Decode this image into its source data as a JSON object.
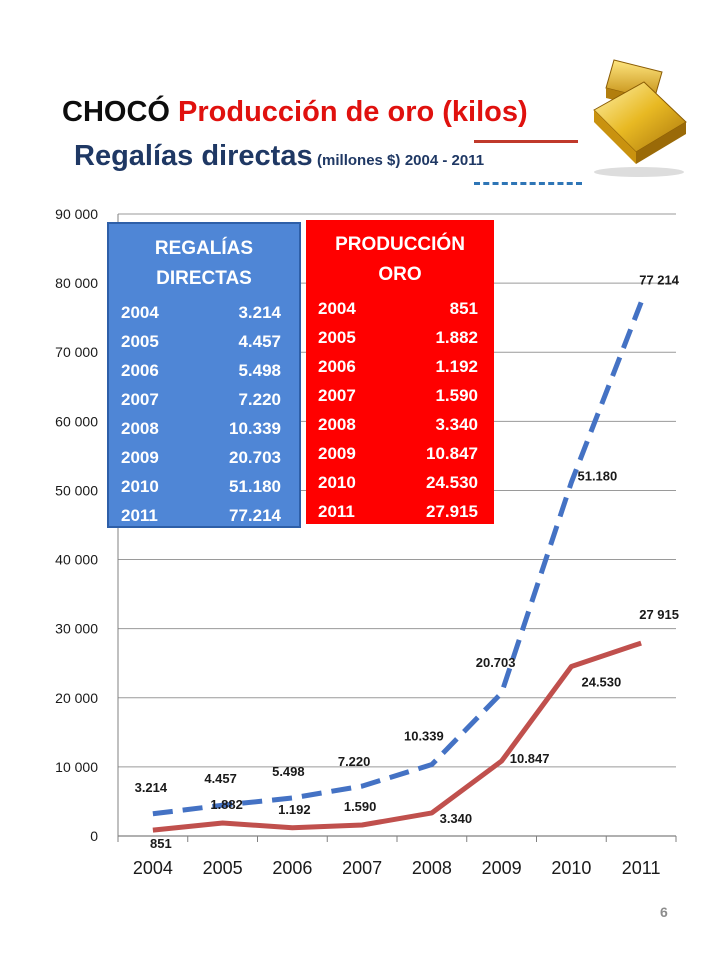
{
  "title": {
    "line1_prefix": "CHOCÓ",
    "line1_highlight": "Producción de oro (kilos)",
    "line2_main": "Regalías directas",
    "line2_small": "(millones $)",
    "line2_years": "2004 - 2011"
  },
  "colors": {
    "regalias": "#4472c4",
    "produccion": "#c0504d",
    "box_blue": "#4f86d6",
    "box_red": "#ff0000",
    "gold": "#e8b923"
  },
  "page_number": "6",
  "boxes": {
    "regalias": {
      "title_line1": "REGALÍAS",
      "title_line2": "DIRECTAS",
      "rows": [
        {
          "year": "2004",
          "value": "3.214"
        },
        {
          "year": "2005",
          "value": "4.457"
        },
        {
          "year": "2006",
          "value": "5.498"
        },
        {
          "year": "2007",
          "value": "7.220"
        },
        {
          "year": "2008",
          "value": "10.339"
        },
        {
          "year": "2009",
          "value": "20.703"
        },
        {
          "year": "2010",
          "value": "51.180"
        },
        {
          "year": "2011",
          "value": "77.214"
        }
      ]
    },
    "produccion": {
      "title_line1": "PRODUCCIÓN",
      "title_line2": "ORO",
      "rows": [
        {
          "year": "2004",
          "value": "851"
        },
        {
          "year": "2005",
          "value": "1.882"
        },
        {
          "year": "2006",
          "value": "1.192"
        },
        {
          "year": "2007",
          "value": "1.590"
        },
        {
          "year": "2008",
          "value": "3.340"
        },
        {
          "year": "2009",
          "value": "10.847"
        },
        {
          "year": "2010",
          "value": "24.530"
        },
        {
          "year": "2011",
          "value": "27.915"
        }
      ]
    }
  },
  "chart_data": {
    "type": "line",
    "title": "CHOCÓ Producción de oro (kilos) Regalías directas (millones $) 2004 - 2011",
    "x": [
      "2004",
      "2005",
      "2006",
      "2007",
      "2008",
      "2009",
      "2010",
      "2011"
    ],
    "ylim": [
      0,
      90000
    ],
    "yticks": [
      0,
      10000,
      20000,
      30000,
      40000,
      50000,
      60000,
      70000,
      80000,
      90000
    ],
    "ytick_labels": [
      "0",
      "10 000",
      "20 000",
      "30 000",
      "40 000",
      "50 000",
      "60 000",
      "70 000",
      "80 000",
      "90 000"
    ],
    "grid": true,
    "series": [
      {
        "key": "regalias",
        "style": "dashed",
        "values": [
          3214,
          4457,
          5498,
          7220,
          10339,
          20703,
          51180,
          77214
        ],
        "labels": [
          "3.214",
          "4.457",
          "5.498",
          "7.220",
          "10.339",
          "20.703",
          "51.180",
          "77 214"
        ]
      },
      {
        "key": "produccion",
        "style": "solid",
        "values": [
          851,
          1882,
          1192,
          1590,
          3340,
          10847,
          24530,
          27915
        ],
        "labels": [
          "851",
          "1.882",
          "1.192",
          "1.590",
          "3.340",
          "10.847",
          "24.530",
          "27 915"
        ]
      }
    ]
  }
}
